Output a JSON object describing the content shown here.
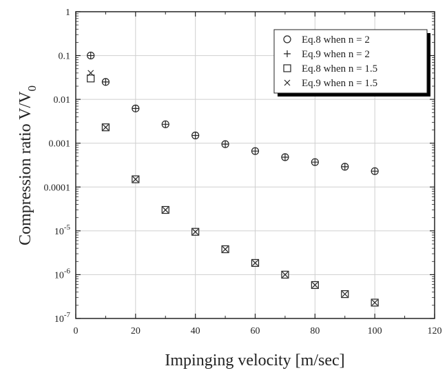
{
  "chart_data": {
    "type": "scatter",
    "xlabel": "Impinging velocity [m/sec]",
    "ylabel_main": "Compression ratio V/V",
    "ylabel_sub": "0",
    "xlim": [
      0,
      120
    ],
    "ylim": [
      1e-07,
      1
    ],
    "yscale": "log",
    "grid": true,
    "legend_position": "top-right",
    "x_ticks": [
      0,
      20,
      40,
      60,
      80,
      100,
      120
    ],
    "y_ticks": [
      {
        "value": 1,
        "label": "1",
        "exp": ""
      },
      {
        "value": 0.1,
        "label": "0.1",
        "exp": ""
      },
      {
        "value": 0.01,
        "label": "0.01",
        "exp": ""
      },
      {
        "value": 0.001,
        "label": "0.001",
        "exp": ""
      },
      {
        "value": 0.0001,
        "label": "0.0001",
        "exp": ""
      },
      {
        "value": 1e-05,
        "label": "10",
        "exp": "-5"
      },
      {
        "value": 1e-06,
        "label": "10",
        "exp": "-6"
      },
      {
        "value": 1e-07,
        "label": "10",
        "exp": "-7"
      }
    ],
    "series": [
      {
        "name": "Eq.8 when n = 2",
        "marker": "circle",
        "x": [
          5,
          10,
          20,
          30,
          40,
          50,
          60,
          70,
          80,
          90,
          100
        ],
        "y": [
          0.1,
          0.025,
          0.0062,
          0.0027,
          0.0015,
          0.00095,
          0.00066,
          0.00048,
          0.00037,
          0.00029,
          0.00023
        ]
      },
      {
        "name": "Eq.9 when n = 2",
        "marker": "plus",
        "x": [
          5,
          10,
          20,
          30,
          40,
          50,
          60,
          70,
          80,
          90,
          100
        ],
        "y": [
          0.1,
          0.025,
          0.0062,
          0.0027,
          0.0015,
          0.00095,
          0.00066,
          0.00048,
          0.00037,
          0.00029,
          0.00023
        ]
      },
      {
        "name": "Eq.8 when n = 1.5",
        "marker": "square",
        "x": [
          5,
          10,
          20,
          30,
          40,
          50,
          60,
          70,
          80,
          90,
          100
        ],
        "y": [
          0.03,
          0.0023,
          0.00015,
          3e-05,
          9.5e-06,
          3.8e-06,
          1.85e-06,
          1e-06,
          5.8e-07,
          3.6e-07,
          2.3e-07
        ]
      },
      {
        "name": "Eq.9 when n = 1.5",
        "marker": "cross",
        "x": [
          5,
          10,
          20,
          30,
          40,
          50,
          60,
          70,
          80,
          90,
          100
        ],
        "y": [
          0.04,
          0.0023,
          0.00015,
          3e-05,
          9.5e-06,
          3.8e-06,
          1.85e-06,
          1e-06,
          5.8e-07,
          3.6e-07,
          2.3e-07
        ]
      }
    ]
  }
}
